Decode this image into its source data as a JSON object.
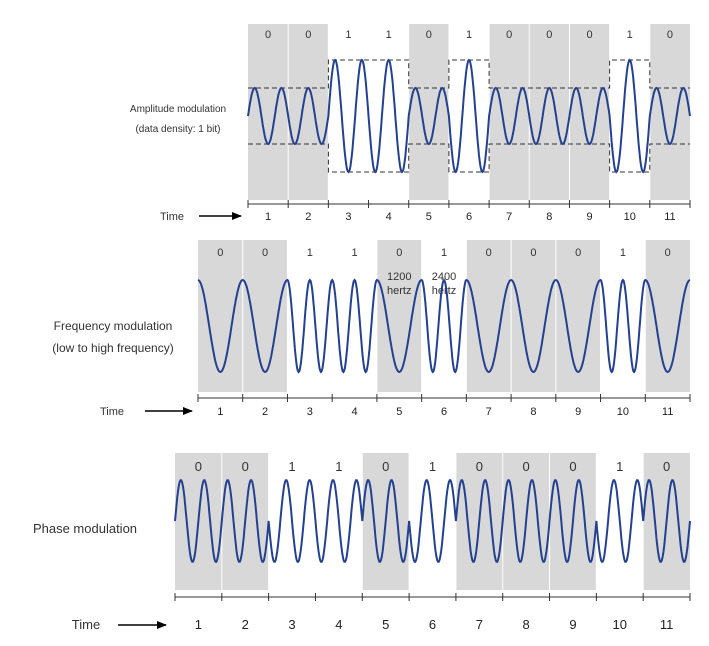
{
  "colors": {
    "wave": "#23418f",
    "shade": "#d8d8d8",
    "axis": "#333333",
    "dash": "#333333"
  },
  "panels": [
    {
      "id": "amplitude",
      "label_lines": [
        "Amplitude modulation",
        "(data density: 1 bit)"
      ],
      "bits": [
        "0",
        "0",
        "1",
        "1",
        "0",
        "1",
        "0",
        "0",
        "0",
        "1",
        "0"
      ],
      "time_label": "Time",
      "ticks": [
        "1",
        "2",
        "3",
        "4",
        "5",
        "6",
        "7",
        "8",
        "9",
        "10",
        "11"
      ],
      "amplitude_levels": {
        "0": 0.5,
        "1": 1.0
      },
      "cycles_per_slot": 1.5
    },
    {
      "id": "frequency",
      "label_lines": [
        "Frequency modulation",
        "(low to high frequency)"
      ],
      "bits": [
        "0",
        "0",
        "1",
        "1",
        "0",
        "1",
        "0",
        "0",
        "0",
        "1",
        "0"
      ],
      "time_label": "Time",
      "ticks": [
        "1",
        "2",
        "3",
        "4",
        "5",
        "6",
        "7",
        "8",
        "9",
        "10",
        "11"
      ],
      "freq_notes": [
        [
          "1200",
          "hertz"
        ],
        [
          "2400",
          "hertz"
        ]
      ],
      "cycles_per_slot": {
        "0": 1,
        "1": 2
      }
    },
    {
      "id": "phase",
      "label_lines": [
        "Phase modulation"
      ],
      "bits": [
        "0",
        "0",
        "1",
        "1",
        "0",
        "1",
        "0",
        "0",
        "0",
        "1",
        "0"
      ],
      "time_label": "Time",
      "ticks": [
        "1",
        "2",
        "3",
        "4",
        "5",
        "6",
        "7",
        "8",
        "9",
        "10",
        "11"
      ],
      "cycles_per_slot": 2
    }
  ]
}
